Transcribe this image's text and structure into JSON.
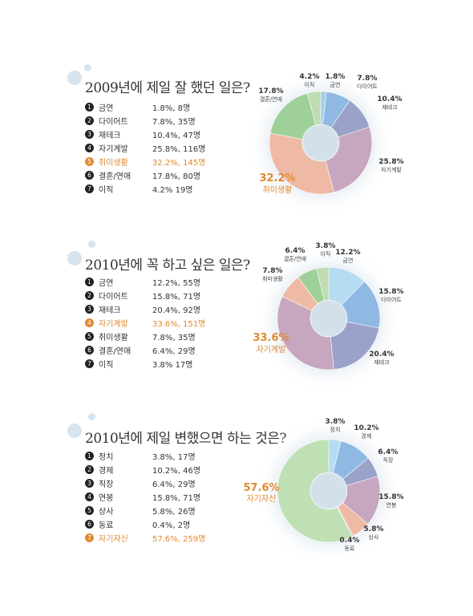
{
  "chart_data": [
    {
      "type": "pie",
      "title": "2009년에 제일 잘 했던 일은?",
      "categories": [
        "금연",
        "다이어트",
        "재테크",
        "자기계발",
        "취미생활",
        "결혼/연애",
        "이직"
      ],
      "values": [
        1.8,
        7.8,
        10.4,
        25.8,
        32.2,
        17.8,
        4.2
      ],
      "counts": [
        "8명",
        "35명",
        "47명",
        "116명",
        "145명",
        "80명",
        "19명"
      ],
      "list_values": [
        "1.8%, 8명",
        "7.8%, 35명",
        "10.4%, 47명",
        "25.8%, 116명",
        "32.2%, 145명",
        "17.8%, 80명",
        "4.2% 19명"
      ],
      "slice_labels": [
        "1.8%",
        "7.8%",
        "10.4%",
        "25.8%",
        "32.2%",
        "17.8%",
        "4.2%"
      ],
      "colors": [
        "#a3cdea",
        "#8fb9e3",
        "#9aa2c9",
        "#c7a6bf",
        "#eebaa5",
        "#9fd09a",
        "#bfdcb3"
      ],
      "highlight": 4
    },
    {
      "type": "pie",
      "title": "2010년에 꼭 하고 싶은 일은?",
      "categories": [
        "금연",
        "다이어트",
        "재테크",
        "자기계발",
        "취미생활",
        "결혼/연애",
        "이직"
      ],
      "values": [
        12.2,
        15.8,
        20.4,
        33.6,
        7.8,
        6.4,
        3.8
      ],
      "counts": [
        "55명",
        "71명",
        "92명",
        "151명",
        "35명",
        "29명",
        "17명"
      ],
      "list_values": [
        "12.2%, 55명",
        "15.8%, 71명",
        "20.4%, 92명",
        "33.6%, 151명",
        "7.8%, 35명",
        "6.4%, 29명",
        "3.8% 17명"
      ],
      "slice_labels": [
        "12.2%",
        "15.8%",
        "20.4%",
        "33.6%",
        "7.8%",
        "6.4%",
        "3.8%"
      ],
      "colors": [
        "#b5dcf0",
        "#8fb9e3",
        "#9aa2c9",
        "#c7a6bf",
        "#eebaa5",
        "#9fd09a",
        "#bfdcb3"
      ],
      "highlight": 3
    },
    {
      "type": "pie",
      "title": "2010년에 제일 변했으면 하는 것은?",
      "categories": [
        "정치",
        "경제",
        "직장",
        "연봉",
        "상사",
        "동료",
        "자기자신"
      ],
      "values": [
        3.8,
        10.2,
        6.4,
        15.8,
        5.8,
        0.4,
        57.6
      ],
      "counts": [
        "17명",
        "46명",
        "29명",
        "71명",
        "26명",
        "2명",
        "259명"
      ],
      "list_values": [
        "3.8%, 17명",
        "10.2%, 46명",
        "6.4%, 29명",
        "15.8%, 71명",
        "5.8%, 26명",
        "0.4%, 2명",
        "57.6%, 259명"
      ],
      "slice_labels": [
        "3.8%",
        "10.2%",
        "6.4%",
        "15.8%",
        "5.8%",
        "0.4%",
        "57.6%"
      ],
      "colors": [
        "#b5dcf0",
        "#8fb9e3",
        "#9aa2c9",
        "#c7a6bf",
        "#eebaa5",
        "#d7bfc2",
        "#bfe0b5"
      ],
      "highlight": 6
    }
  ],
  "markers": [
    "❶",
    "❷",
    "❸",
    "❹",
    "❺",
    "❻",
    "❼"
  ]
}
